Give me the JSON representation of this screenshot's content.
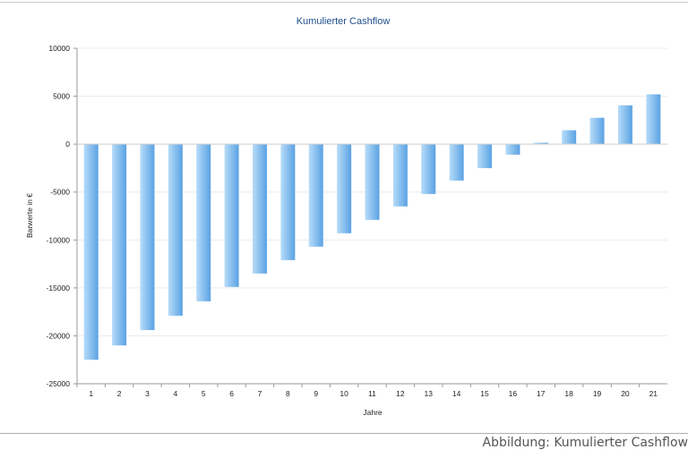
{
  "chart_data": {
    "type": "bar",
    "title": "Kumulierter Cashflow",
    "xlabel": "Jahre",
    "ylabel": "Barwerte in €",
    "categories": [
      "1",
      "2",
      "3",
      "4",
      "5",
      "6",
      "7",
      "8",
      "9",
      "10",
      "11",
      "12",
      "13",
      "14",
      "15",
      "16",
      "17",
      "18",
      "19",
      "20",
      "21"
    ],
    "values": [
      -22500,
      -21000,
      -19400,
      -17900,
      -16400,
      -14900,
      -13500,
      -12100,
      -10700,
      -9300,
      -7900,
      -6500,
      -5200,
      -3800,
      -2500,
      -1100,
      150,
      1450,
      2750,
      4050,
      5200
    ],
    "ylim": [
      -25000,
      10000
    ],
    "yticks": [
      10000,
      5000,
      0,
      -5000,
      -10000,
      -15000,
      -20000,
      -25000
    ],
    "grid": true,
    "legend": "none",
    "colors": {
      "bar_light": "#b7dcf8",
      "bar_dark": "#5aa2e4",
      "title": "#1f4e8c"
    }
  },
  "caption": "Abbildung: Kumulierter Cashflow"
}
